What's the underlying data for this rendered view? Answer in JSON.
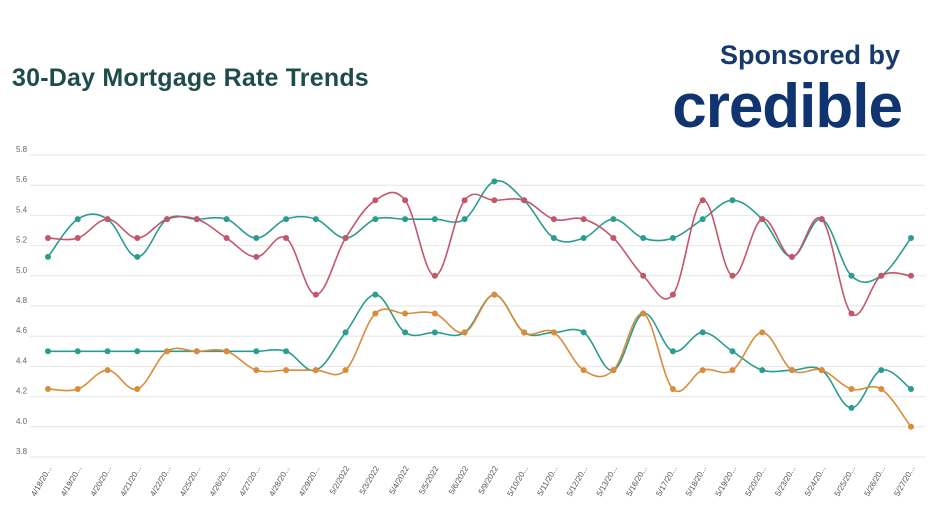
{
  "header": {
    "title": "30-Day Mortgage Rate Trends",
    "sponsor_label": "Sponsored by",
    "brand_logo": "credible"
  },
  "colors": {
    "title": "#1f4c4b",
    "brand": "#0f3470",
    "teal": "#2a9d8f",
    "red": "#c4566b",
    "orange": "#d98c3a",
    "grid": "#e6e6e6"
  },
  "chart_data": {
    "type": "line",
    "title": "30-Day Mortgage Rate Trends",
    "xlabel": "",
    "ylabel": "",
    "ylim": [
      3.8,
      5.8
    ],
    "yticks": [
      "3.8",
      "4.0",
      "4.2",
      "4.4",
      "4.6",
      "4.8",
      "5.0",
      "5.2",
      "5.4",
      "5.6",
      "5.8"
    ],
    "grid": true,
    "legend": "none",
    "categories": [
      "4/18/20...",
      "4/19/20...",
      "4/20/20...",
      "4/21/20...",
      "4/22/20...",
      "4/25/20...",
      "4/26/20...",
      "4/27/20...",
      "4/28/20...",
      "4/29/20...",
      "5/2/2022",
      "5/3/2022",
      "5/4/2022",
      "5/5/2022",
      "5/6/2022",
      "5/9/2022",
      "5/10/20...",
      "5/11/20...",
      "5/12/20...",
      "5/13/20...",
      "5/16/20...",
      "5/17/20...",
      "5/18/20...",
      "5/19/20...",
      "5/20/20...",
      "5/23/20...",
      "5/24/20...",
      "5/25/20...",
      "5/26/20...",
      "5/27/20..."
    ],
    "series": [
      {
        "color": "#2a9d8f",
        "values": [
          5.125,
          5.375,
          5.375,
          5.125,
          5.375,
          5.375,
          5.375,
          5.25,
          5.375,
          5.375,
          5.25,
          5.375,
          5.375,
          5.375,
          5.375,
          5.625,
          5.5,
          5.25,
          5.25,
          5.375,
          5.25,
          5.25,
          5.375,
          5.5,
          5.375,
          5.125,
          5.375,
          5.0,
          5.0,
          5.25
        ]
      },
      {
        "color": "#c4566b",
        "values": [
          5.25,
          5.25,
          5.375,
          5.25,
          5.375,
          5.375,
          5.25,
          5.125,
          5.25,
          4.875,
          5.25,
          5.5,
          5.5,
          5.0,
          5.5,
          5.5,
          5.5,
          5.375,
          5.375,
          5.25,
          5.0,
          4.875,
          5.5,
          5.0,
          5.375,
          5.125,
          5.375,
          4.75,
          5.0,
          5.0
        ]
      },
      {
        "color": "#2a9d8f",
        "values": [
          4.5,
          4.5,
          4.5,
          4.5,
          4.5,
          4.5,
          4.5,
          4.5,
          4.5,
          4.375,
          4.625,
          4.875,
          4.625,
          4.625,
          4.625,
          4.875,
          4.625,
          4.625,
          4.625,
          4.375,
          4.75,
          4.5,
          4.625,
          4.5,
          4.375,
          4.375,
          4.375,
          4.125,
          4.375,
          4.25
        ]
      },
      {
        "color": "#d98c3a",
        "values": [
          4.25,
          4.25,
          4.375,
          4.25,
          4.5,
          4.5,
          4.5,
          4.375,
          4.375,
          4.375,
          4.375,
          4.75,
          4.75,
          4.75,
          4.625,
          4.875,
          4.625,
          4.625,
          4.375,
          4.375,
          4.75,
          4.25,
          4.375,
          4.375,
          4.625,
          4.375,
          4.375,
          4.25,
          4.25,
          4.0
        ]
      }
    ]
  }
}
